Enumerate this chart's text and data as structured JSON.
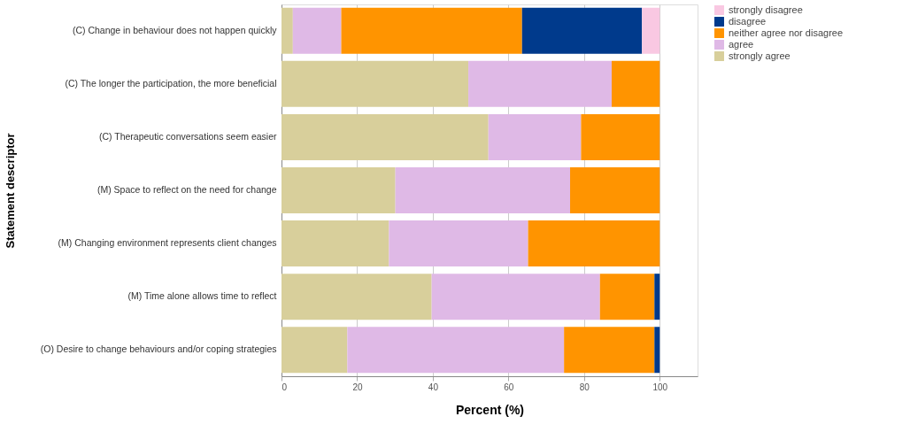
{
  "chart_data": {
    "type": "bar",
    "orientation": "horizontal",
    "stacked": true,
    "xlabel": "Percent (%)",
    "ylabel": "Statement descriptor",
    "categories": [
      "(C) Change in behaviour does not happen quickly",
      "(C) The longer the participation, the more beneficial",
      "(C) Therapeutic conversations seem easier",
      "(M) Space to reflect on the need for change",
      "(M) Changing environment represents client changes",
      "(M) Time alone allows time to reflect",
      "(O) Desire to change behaviours and/or coping strategies"
    ],
    "series": [
      {
        "name": "strongly agree",
        "color": "#d8cf9b",
        "values": [
          3.0,
          49.4,
          54.7,
          30.1,
          28.4,
          39.7,
          17.4
        ]
      },
      {
        "name": "agree",
        "color": "#dfb9e6",
        "values": [
          12.8,
          37.9,
          24.5,
          46.2,
          36.8,
          44.5,
          57.3
        ]
      },
      {
        "name": "neither agree nor disagree",
        "color": "#ff9400",
        "values": [
          47.8,
          12.7,
          20.8,
          23.7,
          34.8,
          14.4,
          23.9
        ]
      },
      {
        "name": "disagree",
        "color": "#003a8c",
        "values": [
          31.7,
          0,
          0,
          0,
          0,
          1.4,
          1.4
        ]
      },
      {
        "name": "strongly disagree",
        "color": "#f9c8e2",
        "values": [
          4.7,
          0,
          0,
          0,
          0,
          0,
          0
        ]
      }
    ],
    "xlim": [
      0,
      110
    ],
    "xticks": [
      0,
      20,
      40,
      60,
      80,
      100
    ],
    "grid": "x",
    "legend": "top right"
  }
}
